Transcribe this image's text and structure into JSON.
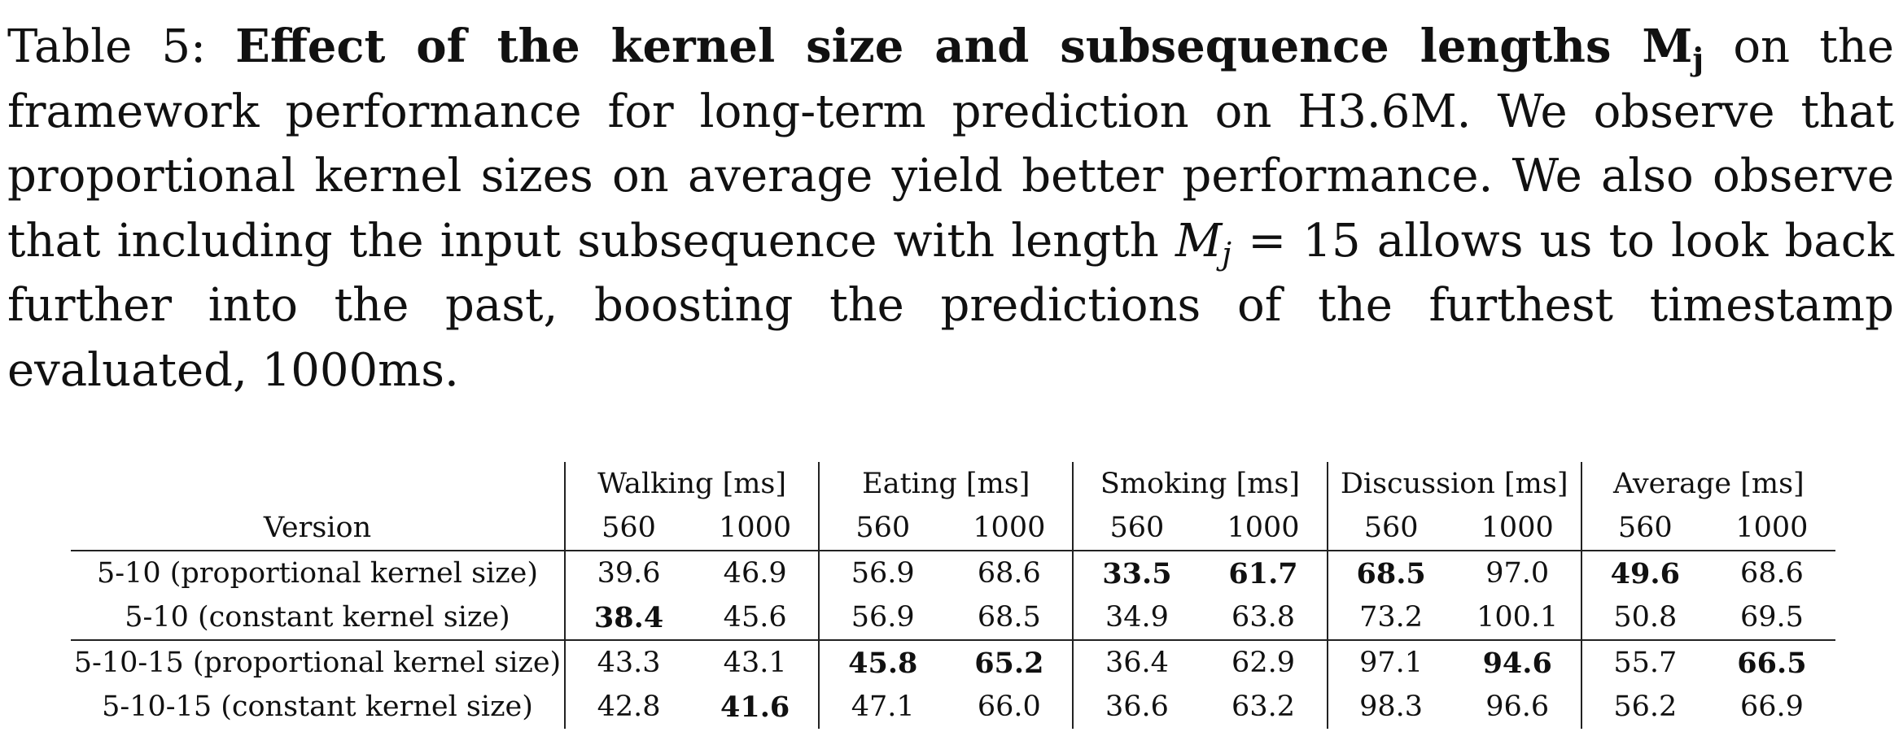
{
  "caption": {
    "label": "Table 5:",
    "title_prefix": "Effect of the kernel size and subsequence lengths",
    "title_math": "M",
    "title_math_sub": "j",
    "text_1": "on the framework performance for long-term prediction on H3.6M. We observe that proportional kernel sizes on average yield better performance. We also observe that including the input subsequence with length",
    "math_var": "M",
    "math_sub": "j",
    "math_eq": "= 15",
    "text_2": "allows us to look back further into the past, boosting the predictions of the furthest timestamp evaluated, 1000ms."
  },
  "table": {
    "version_header": "Version",
    "groups": [
      "Walking [ms]",
      "Eating [ms]",
      "Smoking [ms]",
      "Discussion [ms]",
      "Average [ms]"
    ],
    "subheaders": [
      "560",
      "1000"
    ],
    "rows": [
      {
        "version": "5-10 (proportional kernel size)",
        "values": [
          "39.6",
          "46.9",
          "56.9",
          "68.6",
          "33.5",
          "61.7",
          "68.5",
          "97.0",
          "49.6",
          "68.6"
        ],
        "bold": [
          false,
          false,
          false,
          false,
          true,
          true,
          true,
          false,
          true,
          false
        ]
      },
      {
        "version": "5-10 (constant kernel size)",
        "values": [
          "38.4",
          "45.6",
          "56.9",
          "68.5",
          "34.9",
          "63.8",
          "73.2",
          "100.1",
          "50.8",
          "69.5"
        ],
        "bold": [
          true,
          false,
          false,
          false,
          false,
          false,
          false,
          false,
          false,
          false
        ]
      },
      {
        "version": "5-10-15 (proportional kernel size)",
        "values": [
          "43.3",
          "43.1",
          "45.8",
          "65.2",
          "36.4",
          "62.9",
          "97.1",
          "94.6",
          "55.7",
          "66.5"
        ],
        "bold": [
          false,
          false,
          true,
          true,
          false,
          false,
          false,
          true,
          false,
          true
        ]
      },
      {
        "version": "5-10-15 (constant kernel size)",
        "values": [
          "42.8",
          "41.6",
          "47.1",
          "66.0",
          "36.6",
          "63.2",
          "98.3",
          "96.6",
          "56.2",
          "66.9"
        ],
        "bold": [
          false,
          true,
          false,
          false,
          false,
          false,
          false,
          false,
          false,
          false
        ]
      }
    ]
  }
}
